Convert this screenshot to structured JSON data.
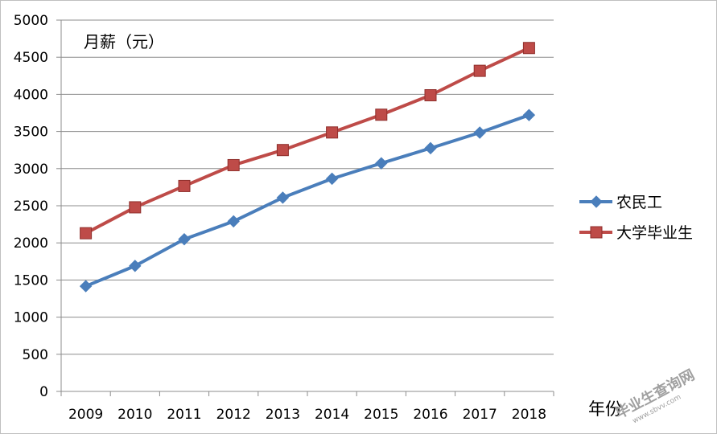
{
  "chart_data": {
    "type": "line",
    "title": "",
    "ylabel": "月薪（元）",
    "xlabel": "年份",
    "categories": [
      "2009",
      "2010",
      "2011",
      "2012",
      "2013",
      "2014",
      "2015",
      "2016",
      "2017",
      "2018"
    ],
    "ylim": [
      0,
      5000
    ],
    "yticks": [
      "0",
      "500",
      "1000",
      "1500",
      "2000",
      "2500",
      "3000",
      "3500",
      "4000",
      "4500",
      "5000"
    ],
    "grid": true,
    "legend_position": "right",
    "series": [
      {
        "name": "农民工",
        "color": "#4a7ebb",
        "marker": "diamond",
        "values": [
          1417,
          1690,
          2049,
          2290,
          2609,
          2864,
          3072,
          3275,
          3485,
          3721
        ]
      },
      {
        "name": "大学毕业生",
        "color": "#be4b48",
        "marker": "square",
        "values": [
          2130,
          2479,
          2766,
          3047,
          3250,
          3487,
          3726,
          3988,
          4317,
          4624
        ]
      }
    ]
  },
  "watermark": {
    "text": "毕业生查询网",
    "url": "www.sbvv.com"
  }
}
